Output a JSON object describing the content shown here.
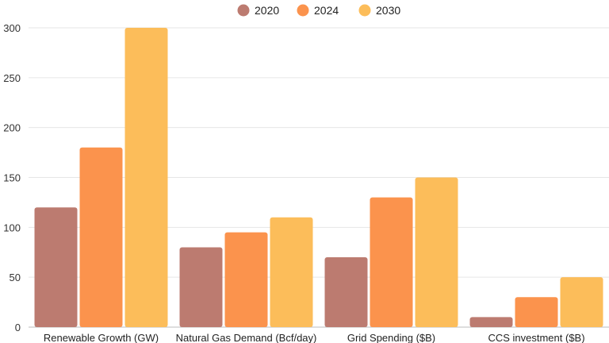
{
  "chart_data": {
    "type": "bar",
    "title": "",
    "xlabel": "",
    "ylabel": "",
    "categories": [
      "Renewable Growth (GW)",
      "Natural Gas Demand (Bcf/day)",
      "Grid Spending ($B)",
      "CCS investment ($B)"
    ],
    "series": [
      {
        "name": "2020",
        "color": "#bc7b70",
        "values": [
          120,
          80,
          70,
          10
        ]
      },
      {
        "name": "2024",
        "color": "#fb934d",
        "values": [
          180,
          95,
          130,
          30
        ]
      },
      {
        "name": "2030",
        "color": "#fcbd5a",
        "values": [
          300,
          110,
          150,
          50
        ]
      }
    ],
    "ylim": [
      0,
      300
    ],
    "yticks": [
      0,
      50,
      100,
      150,
      200,
      250,
      300
    ],
    "grid": true,
    "legend_position": "top-center"
  }
}
